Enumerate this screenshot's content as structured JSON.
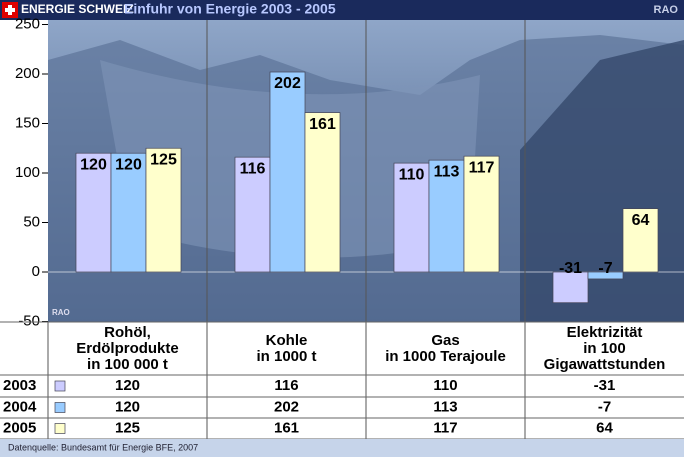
{
  "header": {
    "brand": "ENERGIE SCHWEIZ",
    "logo": "RAO"
  },
  "chart_data": {
    "type": "bar",
    "title": "Einfuhr von Energie 2003 - 2005",
    "categories": [
      "Rohöl,\nErdölprodukte\nin 100 000 t",
      "Kohle\nin 1000 t",
      "Gas\nin 1000 Terajoule",
      "Elektrizität\nin 100\nGigawattstunden"
    ],
    "series": [
      {
        "name": "2003",
        "color": "#ccccff",
        "values": [
          120,
          116,
          110,
          -31
        ]
      },
      {
        "name": "2004",
        "color": "#99ccff",
        "values": [
          120,
          202,
          113,
          -7
        ]
      },
      {
        "name": "2005",
        "color": "#ffffcc",
        "values": [
          125,
          161,
          117,
          64
        ]
      }
    ],
    "ylim": [
      -50,
      250
    ],
    "yticks": [
      -50,
      0,
      50,
      100,
      150,
      200,
      250
    ],
    "watermark": "RAO"
  },
  "source": "Datenquelle: Bundesamt für Energie BFE, 2007"
}
